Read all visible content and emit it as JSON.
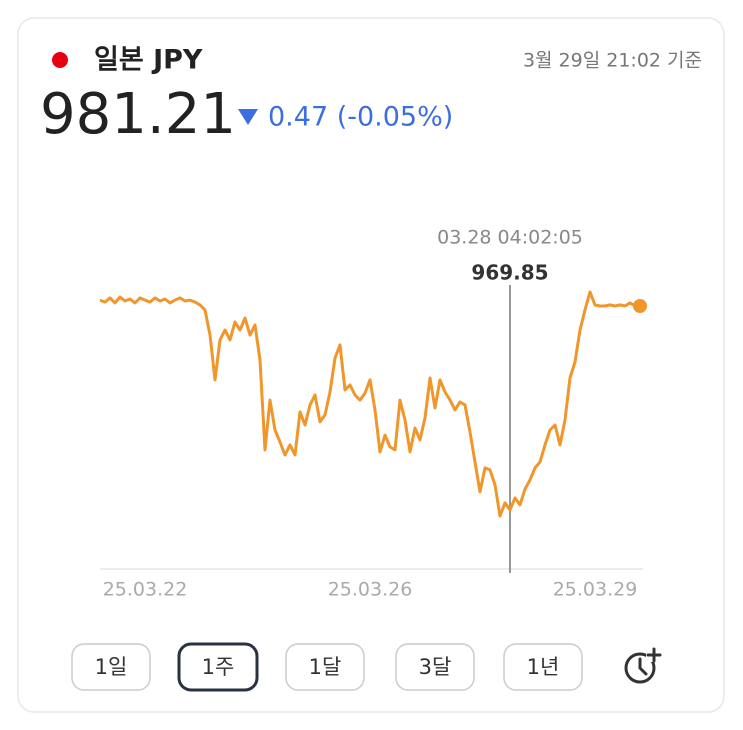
{
  "header": {
    "name": "일본 JPY",
    "timestamp": "3월 29일 21:02 기준",
    "price": "981.21",
    "change": "0.47 (-0.05%)"
  },
  "chart_data": {
    "type": "line",
    "color": "#f0962a",
    "crosshair": {
      "label": "03.28 04:02:05",
      "value": 969.85
    },
    "categories": [
      null,
      null,
      null,
      null,
      null,
      null,
      null,
      null,
      null,
      "25.03.22",
      null,
      null,
      null,
      null,
      null,
      null,
      null,
      null,
      null,
      null,
      null,
      null,
      null,
      null,
      null,
      null,
      null,
      null,
      null,
      null,
      null,
      null,
      null,
      null,
      null,
      null,
      null,
      null,
      null,
      null,
      null,
      null,
      null,
      null,
      null,
      null,
      null,
      null,
      null,
      null,
      null,
      null,
      null,
      null,
      "25.03.26",
      null,
      null,
      null,
      null,
      null,
      null,
      null,
      null,
      null,
      null,
      null,
      null,
      null,
      null,
      null,
      null,
      null,
      null,
      null,
      null,
      null,
      null,
      null,
      null,
      null,
      null,
      null,
      null,
      null,
      null,
      null,
      null,
      null,
      null,
      null,
      null,
      null,
      null,
      null,
      null,
      null,
      null,
      null,
      null,
      "25.03.29",
      null,
      null,
      null,
      null,
      null,
      null,
      null,
      null,
      null
    ],
    "values": [
      981.54,
      981.43,
      981.66,
      981.38,
      981.71,
      981.49,
      981.6,
      981.38,
      981.66,
      981.54,
      981.43,
      981.66,
      981.49,
      981.6,
      981.38,
      981.54,
      981.66,
      981.49,
      981.54,
      981.43,
      981.27,
      980.99,
      979.59,
      977.09,
      979.32,
      979.87,
      979.32,
      980.32,
      979.87,
      980.54,
      979.59,
      980.15,
      978.2,
      973.19,
      975.97,
      974.3,
      973.63,
      972.91,
      973.47,
      972.91,
      975.31,
      974.58,
      975.7,
      976.25,
      974.75,
      975.14,
      976.42,
      978.31,
      979.04,
      976.53,
      976.81,
      976.25,
      975.97,
      976.36,
      977.09,
      975.42,
      973.08,
      974.02,
      973.36,
      973.19,
      975.97,
      974.86,
      973.08,
      974.41,
      973.75,
      974.97,
      977.2,
      975.53,
      977.09,
      976.42,
      975.97,
      975.42,
      975.86,
      975.7,
      974.19,
      972.52,
      970.85,
      972.19,
      972.08,
      971.24,
      969.51,
      970.24,
      969.85,
      970.52,
      970.13,
      971.01,
      971.52,
      972.19,
      972.52,
      973.47,
      974.3,
      974.58,
      973.47,
      974.86,
      977.2,
      978.09,
      979.87,
      980.99,
      981.99,
      981.27,
      981.21,
      981.21,
      981.27,
      981.21,
      981.27,
      981.21,
      981.38,
      981.21,
      981.21
    ]
  },
  "buttons": [
    "1일",
    "1주",
    "1달",
    "3달",
    "1년"
  ],
  "selected_button": "1주"
}
